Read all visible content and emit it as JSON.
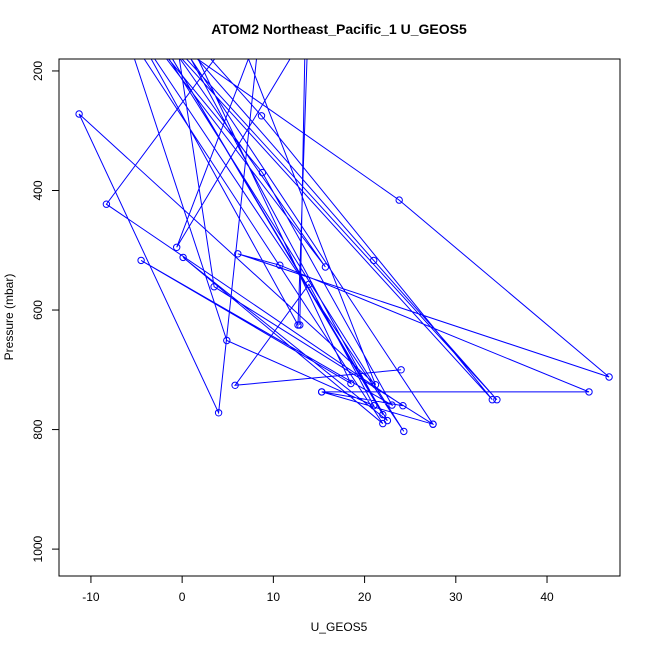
{
  "chart_data": {
    "type": "line",
    "title": "ATOM2 Northeast_Pacific_1 U_GEOS5",
    "xlabel": "U_GEOS5",
    "ylabel": "Pressure (mbar)",
    "xlim": [
      -13.5,
      48.0
    ],
    "ylim": [
      1045,
      180
    ],
    "y_reversed": true,
    "x_ticks": [
      -10,
      0,
      10,
      20,
      30,
      40
    ],
    "y_ticks": [
      200,
      400,
      600,
      800,
      1000
    ],
    "markers": "open-circle",
    "colors": {
      "series": "#0000ff",
      "axes": "#000000",
      "background": "#ffffff"
    },
    "series": [
      {
        "points": [
          {
            "x": 12.9,
            "y": 625
          },
          {
            "x": 13.5,
            "y": 130
          },
          {
            "x": -3.5,
            "y": 130
          },
          {
            "x": 24.3,
            "y": 803
          },
          {
            "x": -5.2,
            "y": 130
          },
          {
            "x": 12.7,
            "y": 625
          },
          {
            "x": 13.8,
            "y": 130
          },
          {
            "x": -0.6,
            "y": 495
          },
          {
            "x": 8.5,
            "y": 130
          },
          {
            "x": 4.0,
            "y": 772
          },
          {
            "x": -11.3,
            "y": 272
          },
          {
            "x": 21.2,
            "y": 725
          },
          {
            "x": 6.0,
            "y": 130
          },
          {
            "x": -8.3,
            "y": 423
          },
          {
            "x": 24.2,
            "y": 760
          },
          {
            "x": 15.3,
            "y": 737
          },
          {
            "x": 27.5,
            "y": 791
          },
          {
            "x": -1.2,
            "y": 130
          },
          {
            "x": 21.0,
            "y": 517
          },
          {
            "x": 34.5,
            "y": 750
          },
          {
            "x": -2.5,
            "y": 130
          },
          {
            "x": 15.7,
            "y": 528
          },
          {
            "x": -4.2,
            "y": 130
          },
          {
            "x": 8.8,
            "y": 370
          },
          {
            "x": 23.0,
            "y": 759
          },
          {
            "x": -4.5,
            "y": 517
          },
          {
            "x": 18.5,
            "y": 723
          },
          {
            "x": 0.2,
            "y": 130
          },
          {
            "x": 8.7,
            "y": 275
          },
          {
            "x": 34.0,
            "y": 750
          },
          {
            "x": -3.0,
            "y": 130
          },
          {
            "x": 23.8,
            "y": 416
          },
          {
            "x": 46.8,
            "y": 712
          },
          {
            "x": 6.1,
            "y": 506
          },
          {
            "x": 10.7,
            "y": 525
          },
          {
            "x": 44.6,
            "y": 737
          },
          {
            "x": 15.3,
            "y": 737
          },
          {
            "x": 27.5,
            "y": 791
          },
          {
            "x": 3.5,
            "y": 561
          },
          {
            "x": -0.8,
            "y": 130
          },
          {
            "x": 22.0,
            "y": 775
          },
          {
            "x": -3.0,
            "y": 130
          },
          {
            "x": 22.5,
            "y": 785
          },
          {
            "x": 0.1,
            "y": 512
          },
          {
            "x": 22.0,
            "y": 790
          },
          {
            "x": -6.3,
            "y": 130
          },
          {
            "x": 4.9,
            "y": 651
          },
          {
            "x": 21.0,
            "y": 760
          },
          {
            "x": 13.9,
            "y": 557
          },
          {
            "x": 5.8,
            "y": 726
          },
          {
            "x": 24.0,
            "y": 700
          }
        ]
      }
    ]
  }
}
